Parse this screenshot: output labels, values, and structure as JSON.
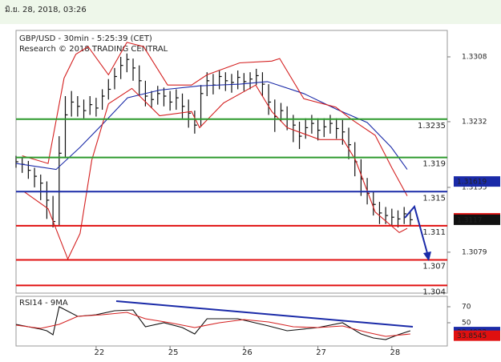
{
  "header": {
    "date": "มิ.ย. 28, 2018, 03:26"
  },
  "chart_data": [
    {
      "type": "ohlc",
      "title": "GBP/USD - 30min - 5:25:39 (CET)",
      "subtitle": "Research © 2018 TRADING CENTRAL",
      "xlim": [
        0,
        70
      ],
      "xticks": [
        {
          "value": 13,
          "label": "22"
        },
        {
          "value": 25,
          "label": "25"
        },
        {
          "value": 37,
          "label": "26"
        },
        {
          "value": 49,
          "label": "27"
        },
        {
          "value": 61,
          "label": "28"
        }
      ],
      "ylim": [
        1.3031,
        1.3339
      ],
      "yticks": [
        1.3308,
        1.3232,
        1.3155,
        1.3079
      ],
      "color": "#111111",
      "high": [
        1.3192,
        1.319,
        1.3186,
        1.3178,
        1.317,
        1.3162,
        1.3145,
        1.3215,
        1.3262,
        1.3268,
        1.3262,
        1.3258,
        1.3262,
        1.326,
        1.327,
        1.3282,
        1.3295,
        1.3308,
        1.3312,
        1.3306,
        1.3298,
        1.328,
        1.3268,
        1.3274,
        1.3272,
        1.3268,
        1.327,
        1.3265,
        1.3258,
        1.3245,
        1.3275,
        1.329,
        1.3288,
        1.3292,
        1.329,
        1.3288,
        1.3292,
        1.3289,
        1.329,
        1.3294,
        1.329,
        1.3276,
        1.3258,
        1.3254,
        1.325,
        1.324,
        1.3232,
        1.3236,
        1.324,
        1.3236,
        1.3236,
        1.324,
        1.3236,
        1.3234,
        1.3225,
        1.3208,
        1.3188,
        1.3166,
        1.315,
        1.3138,
        1.3132,
        1.313,
        1.3128,
        1.3132,
        1.3126
      ],
      "low": [
        1.3178,
        1.3172,
        1.3165,
        1.3155,
        1.314,
        1.3118,
        1.3108,
        1.311,
        1.319,
        1.3238,
        1.3238,
        1.3236,
        1.324,
        1.3238,
        1.3246,
        1.3258,
        1.327,
        1.3282,
        1.329,
        1.328,
        1.3262,
        1.325,
        1.3248,
        1.3252,
        1.325,
        1.3245,
        1.3246,
        1.3236,
        1.3225,
        1.3218,
        1.3226,
        1.3262,
        1.3264,
        1.327,
        1.3268,
        1.3266,
        1.327,
        1.3268,
        1.327,
        1.3275,
        1.3262,
        1.324,
        1.322,
        1.3232,
        1.3222,
        1.3208,
        1.32,
        1.3212,
        1.3218,
        1.321,
        1.3214,
        1.3218,
        1.3212,
        1.3205,
        1.3188,
        1.3168,
        1.3145,
        1.3135,
        1.3122,
        1.3112,
        1.3112,
        1.311,
        1.3108,
        1.3112,
        1.311
      ],
      "close": [
        1.3185,
        1.3182,
        1.3175,
        1.3168,
        1.316,
        1.314,
        1.3115,
        1.3195,
        1.324,
        1.3255,
        1.325,
        1.3245,
        1.3252,
        1.3248,
        1.3262,
        1.327,
        1.3285,
        1.3298,
        1.3305,
        1.3295,
        1.328,
        1.3262,
        1.3258,
        1.3265,
        1.3262,
        1.3255,
        1.326,
        1.325,
        1.3242,
        1.3228,
        1.3265,
        1.328,
        1.3275,
        1.3285,
        1.328,
        1.3278,
        1.3284,
        1.3279,
        1.3282,
        1.3286,
        1.3276,
        1.3255,
        1.3238,
        1.3245,
        1.3235,
        1.3228,
        1.3215,
        1.3225,
        1.323,
        1.3222,
        1.3226,
        1.323,
        1.3224,
        1.322,
        1.3205,
        1.3185,
        1.3165,
        1.3148,
        1.3135,
        1.3125,
        1.3122,
        1.312,
        1.3118,
        1.3124,
        1.3117
      ],
      "overlays": [
        {
          "color": "#1a2aa8",
          "x": [
            0,
            6.5,
            10.4,
            14.3,
            18.1,
            23.3,
            29.8,
            36.3,
            40.8,
            46.7,
            51.9,
            57,
            60.9,
            63.5
          ],
          "values": [
            1.3183,
            1.3176,
            1.3202,
            1.3231,
            1.326,
            1.3269,
            1.3274,
            1.3276,
            1.3279,
            1.3265,
            1.3247,
            1.3231,
            1.3202,
            1.3176
          ]
        },
        {
          "color": "#d42020",
          "x": [
            1,
            5.2,
            7.8,
            9.7,
            11.7,
            15,
            18,
            20.7,
            24.6,
            28.5,
            31,
            36.3,
            41.5,
            42.8,
            46.7,
            51.9,
            54.4,
            58.3,
            61,
            63.5
          ],
          "values": [
            1.3192,
            1.3183,
            1.3283,
            1.3311,
            1.332,
            1.3287,
            1.3325,
            1.332,
            1.3275,
            1.3275,
            1.3287,
            1.3301,
            1.3303,
            1.3306,
            1.3259,
            1.3249,
            1.3235,
            1.3216,
            1.3178,
            1.3145
          ]
        },
        {
          "color": "#d42020",
          "x": [
            1.3,
            5.2,
            8.4,
            10.4,
            12.3,
            15,
            18.8,
            23.3,
            28.5,
            29.8,
            33.7,
            38.9,
            41.5,
            44,
            49.3,
            53.1,
            55.1,
            58.3,
            62.2,
            63.5
          ],
          "values": [
            1.315,
            1.313,
            1.3071,
            1.3101,
            1.3187,
            1.3253,
            1.3271,
            1.3239,
            1.3244,
            1.3225,
            1.3254,
            1.3275,
            1.3244,
            1.3225,
            1.3211,
            1.3211,
            1.3187,
            1.3126,
            1.3102,
            1.3107
          ]
        }
      ],
      "levels": [
        {
          "value": 1.3235,
          "color": "#2e9a2e"
        },
        {
          "value": 1.319,
          "color": "#2e9a2e"
        },
        {
          "value": 1.315,
          "color": "#1a2aa8"
        },
        {
          "value": 1.311,
          "color": "#e01010"
        },
        {
          "value": 1.307,
          "color": "#e01010"
        },
        {
          "value": 1.304,
          "color": "#e01010"
        }
      ],
      "markers": [
        {
          "value": 1.31619,
          "color": "#1a2aa8"
        },
        {
          "value": 1.31187,
          "color": "#e01010"
        },
        {
          "value": 1.3117,
          "color": "#111111"
        }
      ]
    },
    {
      "type": "line",
      "title": "RSI14 - 9MA",
      "xlim": [
        0,
        70
      ],
      "ylim": [
        21,
        83
      ],
      "yticks": [
        70,
        50
      ],
      "series": [
        {
          "color": "#111111",
          "x": [
            0,
            2,
            4,
            5,
            6,
            7,
            10,
            13,
            16,
            19,
            21,
            24,
            27,
            29,
            31,
            36,
            41,
            44,
            49,
            53,
            56,
            58,
            60,
            62,
            64
          ],
          "values": [
            48,
            45,
            42,
            40,
            35,
            70,
            58,
            60,
            65,
            66,
            45,
            50,
            44,
            36,
            55,
            55,
            46,
            40,
            44,
            50,
            36,
            31,
            29,
            35,
            40
          ]
        },
        {
          "color": "#d42020",
          "x": [
            0,
            4,
            7,
            10,
            14,
            18,
            21,
            25,
            29,
            33,
            37,
            41,
            45,
            49,
            53,
            57,
            60,
            64
          ],
          "values": [
            47,
            43,
            48,
            58,
            60,
            63,
            55,
            50,
            44,
            50,
            54,
            51,
            45,
            44,
            46,
            38,
            33,
            36
          ]
        }
      ],
      "markers": [
        {
          "value": 38.4022,
          "color": "#1a2aa8"
        },
        {
          "value": 33.8545,
          "color": "#e01010"
        }
      ]
    }
  ]
}
